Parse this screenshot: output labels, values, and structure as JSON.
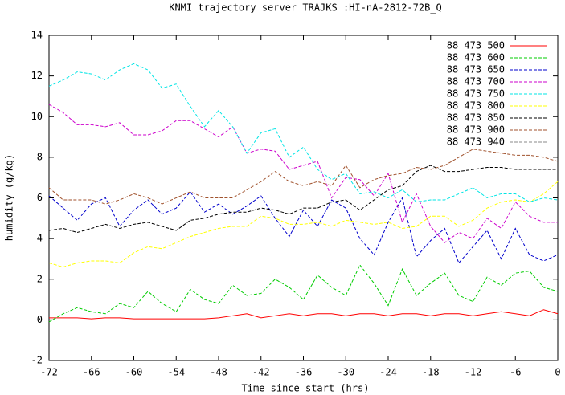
{
  "chart_data": {
    "type": "line",
    "title": "KNMI trajectory server TRAJKS :HI-nA-2812-72B_Q",
    "x_label": "Time since start (hrs)",
    "y_label": "humidity (g/kg)",
    "xlim": [
      -72,
      0
    ],
    "ylim": [
      -2,
      14
    ],
    "xticks": [
      -72,
      -66,
      -60,
      -54,
      -48,
      -42,
      -36,
      -30,
      -24,
      -18,
      -12,
      -6,
      0
    ],
    "yticks": [
      -2,
      0,
      2,
      4,
      6,
      8,
      10,
      12,
      14
    ],
    "grid": false,
    "legend": "top-right",
    "x": [
      -72,
      -70,
      -68,
      -66,
      -64,
      -62,
      -60,
      -58,
      -56,
      -54,
      -52,
      -50,
      -48,
      -46,
      -44,
      -42,
      -40,
      -38,
      -36,
      -34,
      -32,
      -30,
      -28,
      -26,
      -24,
      -22,
      -20,
      -18,
      -16,
      -14,
      -12,
      -10,
      -8,
      -6,
      -4,
      -2,
      0
    ],
    "series": [
      {
        "name": "88 473 500",
        "color": "#ff0000",
        "values": [
          0.1,
          0.1,
          0.1,
          0.05,
          0.1,
          0.1,
          0.05,
          0.05,
          0.05,
          0.05,
          0.05,
          0.05,
          0.1,
          0.2,
          0.3,
          0.1,
          0.2,
          0.3,
          0.2,
          0.3,
          0.3,
          0.2,
          0.3,
          0.3,
          0.2,
          0.3,
          0.3,
          0.2,
          0.3,
          0.3,
          0.2,
          0.3,
          0.4,
          0.3,
          0.2,
          0.5,
          0.3
        ]
      },
      {
        "name": "88 473 600",
        "color": "#00cc00",
        "values": [
          -0.1,
          0.3,
          0.6,
          0.4,
          0.3,
          0.8,
          0.6,
          1.4,
          0.8,
          0.4,
          1.5,
          1.0,
          0.8,
          1.7,
          1.2,
          1.3,
          2.0,
          1.6,
          1.0,
          2.2,
          1.6,
          1.2,
          2.7,
          1.8,
          0.7,
          2.5,
          1.2,
          1.8,
          2.3,
          1.2,
          0.9,
          2.1,
          1.7,
          2.3,
          2.4,
          1.6,
          1.4
        ]
      },
      {
        "name": "88 473 650",
        "color": "#0000cc",
        "values": [
          6.1,
          5.5,
          4.9,
          5.7,
          6.0,
          4.6,
          5.4,
          5.9,
          5.2,
          5.5,
          6.3,
          5.3,
          5.7,
          5.2,
          5.6,
          6.1,
          5.0,
          4.1,
          5.4,
          4.6,
          5.9,
          5.5,
          4.0,
          3.2,
          4.8,
          6.0,
          3.1,
          3.9,
          4.5,
          2.8,
          3.6,
          4.4,
          3.0,
          4.5,
          3.2,
          2.9,
          3.2
        ]
      },
      {
        "name": "88 473 700",
        "color": "#cc00cc",
        "values": [
          10.6,
          10.2,
          9.6,
          9.6,
          9.5,
          9.7,
          9.1,
          9.1,
          9.3,
          9.8,
          9.8,
          9.4,
          9.0,
          9.5,
          8.2,
          8.4,
          8.3,
          7.4,
          7.6,
          7.8,
          6.0,
          7.0,
          6.9,
          6.1,
          7.2,
          4.8,
          6.2,
          4.6,
          3.8,
          4.3,
          4.0,
          5.0,
          4.5,
          5.8,
          5.1,
          4.8,
          4.8
        ]
      },
      {
        "name": "88 473 750",
        "color": "#00e5e5",
        "values": [
          11.5,
          11.8,
          12.2,
          12.1,
          11.8,
          12.3,
          12.6,
          12.3,
          11.4,
          11.6,
          10.5,
          9.5,
          10.3,
          9.5,
          8.2,
          9.2,
          9.4,
          8.0,
          8.5,
          7.4,
          6.9,
          7.2,
          6.2,
          6.3,
          6.0,
          6.4,
          5.8,
          5.9,
          5.9,
          6.2,
          6.5,
          6.0,
          6.2,
          6.2,
          5.8,
          6.0,
          5.9
        ]
      },
      {
        "name": "88 473 800",
        "color": "#ffff00",
        "values": [
          2.8,
          2.6,
          2.8,
          2.9,
          2.9,
          2.8,
          3.3,
          3.6,
          3.5,
          3.8,
          4.1,
          4.3,
          4.5,
          4.6,
          4.6,
          5.1,
          5.0,
          4.7,
          4.7,
          4.8,
          4.6,
          4.9,
          4.8,
          4.7,
          4.8,
          4.5,
          4.6,
          5.1,
          5.1,
          4.6,
          4.9,
          5.5,
          5.8,
          5.9,
          5.8,
          6.2,
          6.8
        ]
      },
      {
        "name": "88 473 850",
        "color": "#000000",
        "values": [
          4.4,
          4.5,
          4.3,
          4.5,
          4.7,
          4.5,
          4.7,
          4.8,
          4.6,
          4.4,
          4.9,
          5.0,
          5.2,
          5.3,
          5.3,
          5.5,
          5.4,
          5.2,
          5.5,
          5.5,
          5.8,
          5.9,
          5.4,
          5.9,
          6.4,
          6.6,
          7.3,
          7.6,
          7.3,
          7.3,
          7.4,
          7.5,
          7.5,
          7.4,
          7.4,
          7.4,
          7.4
        ]
      },
      {
        "name": "88 473 900",
        "color": "#a0522d",
        "values": [
          6.5,
          5.9,
          5.9,
          5.9,
          5.7,
          5.9,
          6.2,
          6.0,
          5.7,
          6.0,
          6.3,
          6.0,
          6.0,
          6.0,
          6.4,
          6.8,
          7.3,
          6.8,
          6.6,
          6.8,
          6.6,
          7.6,
          6.5,
          6.9,
          7.1,
          7.2,
          7.5,
          7.4,
          7.6,
          8.0,
          8.4,
          8.3,
          8.2,
          8.1,
          8.1,
          8.0,
          7.8
        ]
      },
      {
        "name": "88 473 940",
        "color": "#888888",
        "values": [
          null,
          null,
          null,
          null,
          null,
          null,
          null,
          null,
          null,
          null,
          null,
          null,
          null,
          null,
          null,
          null,
          null,
          null,
          null,
          null,
          null,
          null,
          null,
          null,
          null,
          null,
          null,
          null,
          null,
          null,
          null,
          null,
          null,
          null,
          null,
          null,
          null
        ]
      }
    ]
  }
}
